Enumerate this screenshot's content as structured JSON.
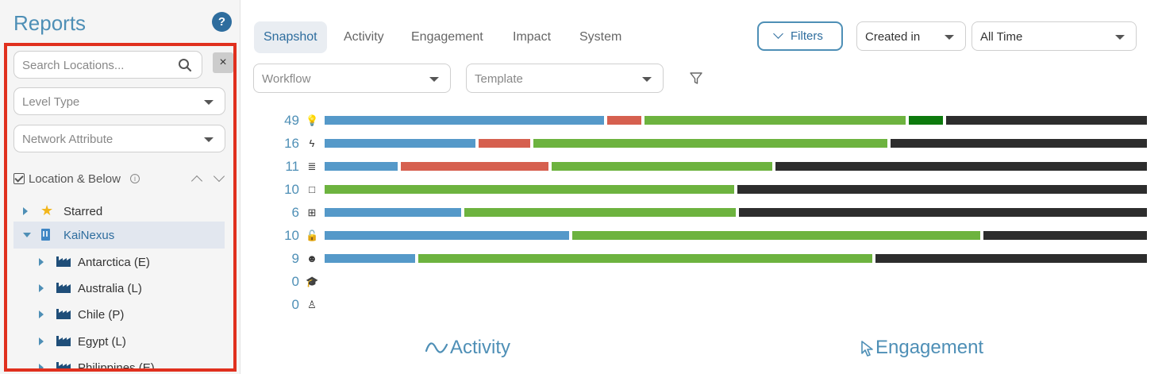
{
  "sidebar": {
    "title": "Reports",
    "help_label": "?",
    "search_placeholder": "Search Locations...",
    "clear_label": "×",
    "level_type_placeholder": "Level Type",
    "network_attribute_placeholder": "Network Attribute",
    "location_filter_label": "Location & Below",
    "info_label": "i",
    "tree": [
      {
        "label": "Starred",
        "icon": "star-icon",
        "expanded": false,
        "selected": false
      },
      {
        "label": "KaiNexus",
        "icon": "building-icon",
        "expanded": true,
        "selected": true
      },
      {
        "label": "Antarctica (E)",
        "icon": "factory-icon",
        "expanded": false,
        "selected": false
      },
      {
        "label": "Australia (L)",
        "icon": "factory-icon",
        "expanded": false,
        "selected": false
      },
      {
        "label": "Chile (P)",
        "icon": "factory-icon",
        "expanded": false,
        "selected": false
      },
      {
        "label": "Egypt (L)",
        "icon": "factory-icon",
        "expanded": false,
        "selected": false
      },
      {
        "label": "Philippines (E)",
        "icon": "factory-icon",
        "expanded": false,
        "selected": false
      }
    ]
  },
  "tabs": [
    {
      "label": "Snapshot",
      "active": true
    },
    {
      "label": "Activity",
      "active": false
    },
    {
      "label": "Engagement",
      "active": false
    },
    {
      "label": "Impact",
      "active": false
    },
    {
      "label": "System",
      "active": false
    }
  ],
  "toolbar": {
    "filters_label": "Filters",
    "created_in_label": "Created in",
    "time_range_label": "All Time",
    "workflow_placeholder": "Workflow",
    "template_placeholder": "Template"
  },
  "colors": {
    "blue": "#5599c9",
    "red": "#d6604f",
    "green": "#6db33f",
    "dark_green": "#0d7a0d",
    "black": "#2d2d2d",
    "accent": "#4e8fb6"
  },
  "chart_data": {
    "type": "bar",
    "stacked": true,
    "orientation": "horizontal",
    "note_segments": "segment values are relative widths (fraction of full bar) per status color",
    "rows": [
      {
        "count": "49",
        "icon": "lightbulb-icon",
        "segments": [
          {
            "color": "blue",
            "value": 0.345
          },
          {
            "color": "red",
            "value": 0.042
          },
          {
            "color": "green",
            "value": 0.323
          },
          {
            "color": "dark_green",
            "value": 0.042
          },
          {
            "color": "black",
            "value": 0.248
          }
        ]
      },
      {
        "count": "16",
        "icon": "lightning-icon",
        "segments": [
          {
            "color": "blue",
            "value": 0.186
          },
          {
            "color": "red",
            "value": 0.063
          },
          {
            "color": "green",
            "value": 0.436
          },
          {
            "color": "black",
            "value": 0.315
          }
        ]
      },
      {
        "count": "11",
        "icon": "list-icon",
        "segments": [
          {
            "color": "blue",
            "value": 0.09
          },
          {
            "color": "red",
            "value": 0.181
          },
          {
            "color": "green",
            "value": 0.272
          },
          {
            "color": "black",
            "value": 0.457
          }
        ]
      },
      {
        "count": "10",
        "icon": "square-icon",
        "segments": [
          {
            "color": "green",
            "value": 0.5
          },
          {
            "color": "black",
            "value": 0.5
          }
        ]
      },
      {
        "count": "6",
        "icon": "grid-icon",
        "segments": [
          {
            "color": "blue",
            "value": 0.167
          },
          {
            "color": "green",
            "value": 0.333
          },
          {
            "color": "black",
            "value": 0.5
          }
        ]
      },
      {
        "count": "10",
        "icon": "unlock-icon",
        "segments": [
          {
            "color": "blue",
            "value": 0.3
          },
          {
            "color": "green",
            "value": 0.5
          },
          {
            "color": "black",
            "value": 0.2
          }
        ]
      },
      {
        "count": "9",
        "icon": "head-icon",
        "segments": [
          {
            "color": "blue",
            "value": 0.111
          },
          {
            "color": "green",
            "value": 0.556
          },
          {
            "color": "black",
            "value": 0.333
          }
        ]
      },
      {
        "count": "0",
        "icon": "graduation-cap-icon",
        "segments": []
      },
      {
        "count": "0",
        "icon": "teacher-icon",
        "segments": []
      }
    ]
  },
  "sections": {
    "activity_title": "Activity",
    "engagement_title": "Engagement"
  }
}
